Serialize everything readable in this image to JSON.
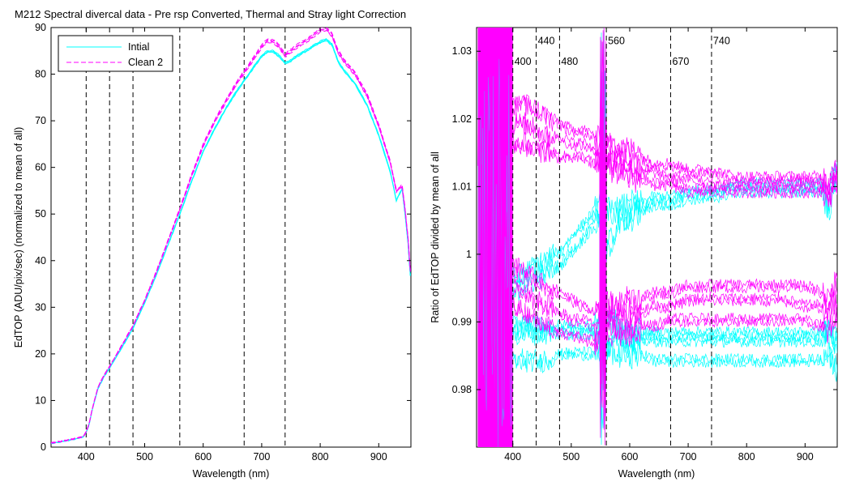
{
  "figure_title": "M212  Spectral divercal data - Pre rsp Converted, Thermal and Stray light Correction",
  "colors": {
    "initial": "#00FFFF",
    "clean": "#FF00FF",
    "reference_line": "#000000",
    "axes": "#000000"
  },
  "chart_data": [
    {
      "type": "line",
      "title": "",
      "xlabel": "Wavelength (nm)",
      "ylabel": "EdTOP (ADU/pix/sec) (normalized to mean of all)",
      "xlim": [
        340,
        955
      ],
      "ylim": [
        0,
        90
      ],
      "xticks": [
        400,
        500,
        600,
        700,
        800,
        900
      ],
      "yticks": [
        0,
        10,
        20,
        30,
        40,
        50,
        60,
        70,
        80,
        90
      ],
      "grid": false,
      "legend_position": "top-left",
      "legend": [
        {
          "label": "Intial",
          "color": "#00FFFF",
          "style": "solid"
        },
        {
          "label": "Clean 2",
          "color": "#FF00FF",
          "style": "dashed"
        }
      ],
      "reference_lines_x": [
        400,
        440,
        480,
        560,
        670,
        740
      ],
      "series": [
        {
          "name": "Intial",
          "color": "#00FFFF",
          "x": [
            340,
            360,
            380,
            395,
            400,
            405,
            410,
            420,
            430,
            440,
            460,
            480,
            500,
            520,
            540,
            560,
            580,
            600,
            620,
            640,
            660,
            680,
            700,
            710,
            720,
            730,
            740,
            750,
            760,
            780,
            800,
            810,
            820,
            830,
            840,
            860,
            880,
            900,
            920,
            930,
            940,
            945,
            950,
            955
          ],
          "values": [
            0.8,
            1.2,
            1.7,
            2.2,
            3.2,
            4.8,
            7.8,
            12.5,
            15.0,
            17.0,
            21.2,
            25.5,
            31.0,
            37.0,
            43.5,
            50.0,
            57.0,
            63.5,
            68.5,
            73.0,
            77.0,
            80.5,
            84.0,
            85.0,
            85.0,
            84.0,
            82.5,
            83.0,
            84.0,
            85.5,
            87.0,
            87.5,
            86.5,
            83.0,
            81.0,
            78.0,
            73.5,
            67.0,
            59.0,
            53.0,
            55.5,
            50.0,
            44.0,
            35.0
          ]
        },
        {
          "name": "Clean 2",
          "color": "#FF00FF",
          "x": [
            340,
            360,
            380,
            395,
            400,
            405,
            410,
            420,
            430,
            440,
            460,
            480,
            500,
            520,
            540,
            560,
            580,
            600,
            620,
            640,
            660,
            680,
            700,
            710,
            720,
            730,
            740,
            750,
            760,
            780,
            800,
            810,
            820,
            830,
            840,
            860,
            880,
            900,
            920,
            930,
            940,
            945,
            950,
            955
          ],
          "values": [
            0.9,
            1.3,
            1.8,
            2.3,
            3.3,
            5.0,
            8.0,
            12.8,
            15.3,
            17.3,
            21.6,
            26.0,
            31.5,
            37.6,
            44.3,
            51.0,
            58.2,
            64.8,
            70.0,
            74.5,
            78.7,
            82.2,
            86.0,
            87.2,
            87.0,
            86.0,
            84.0,
            85.0,
            86.0,
            87.5,
            89.5,
            89.8,
            88.5,
            85.0,
            83.0,
            80.0,
            75.5,
            69.0,
            61.0,
            55.0,
            56.0,
            51.0,
            45.0,
            36.0
          ]
        }
      ]
    },
    {
      "type": "line",
      "title": "",
      "xlabel": "Wavelength (nm)",
      "ylabel": "Ratio of EdTOP divided by mean of all",
      "xlim": [
        338,
        955
      ],
      "ylim": [
        0.9715,
        1.0335
      ],
      "xticks": [
        400,
        500,
        600,
        700,
        800,
        900
      ],
      "yticks": [
        0.98,
        0.99,
        1,
        1.01,
        1.02,
        1.03
      ],
      "ytick_labels": [
        "0.98",
        "0.99",
        "1",
        "1.01",
        "1.02",
        "1.03"
      ],
      "grid": false,
      "reference_lines_x": [
        400,
        440,
        480,
        560,
        670,
        740
      ],
      "annotations": [
        {
          "text": "400",
          "x": 400,
          "y": 1.0285
        },
        {
          "text": "440",
          "x": 440,
          "y": 1.0315
        },
        {
          "text": "480",
          "x": 480,
          "y": 1.0285
        },
        {
          "text": "560",
          "x": 560,
          "y": 1.0315
        },
        {
          "text": "670",
          "x": 670,
          "y": 1.0285
        },
        {
          "text": "740",
          "x": 740,
          "y": 1.0315
        }
      ],
      "noisy_region_x": [
        340,
        400
      ],
      "spike_x": [
        550,
        560
      ],
      "series": [
        {
          "name": "Intial",
          "color": "#00FFFF",
          "x": [
            400,
            420,
            440,
            460,
            480,
            500,
            520,
            540,
            550,
            560,
            580,
            600,
            620,
            640,
            670,
            700,
            740,
            780,
            820,
            860,
            900,
            930,
            940,
            950
          ],
          "curves": [
            [
              0.996,
              0.997,
              0.998,
              0.999,
              1.0,
              1.002,
              1.004,
              1.006,
              1.007,
              1.006,
              1.006,
              1.007,
              1.007,
              1.008,
              1.008,
              1.009,
              1.009,
              1.01,
              1.01,
              1.01,
              1.01,
              1.01,
              1.008,
              1.012
            ],
            [
              0.994,
              0.995,
              0.996,
              0.997,
              0.998,
              1.0,
              1.002,
              1.004,
              1.005,
              1.0,
              1.004,
              1.005,
              1.006,
              1.007,
              1.007,
              1.008,
              1.008,
              1.009,
              1.009,
              1.009,
              1.009,
              1.009,
              1.006,
              1.01
            ],
            [
              0.988,
              0.988,
              0.988,
              0.988,
              0.988,
              0.988,
              0.988,
              0.988,
              0.988,
              0.99,
              0.988,
              0.987,
              0.987,
              0.987,
              0.987,
              0.987,
              0.987,
              0.987,
              0.987,
              0.987,
              0.987,
              0.987,
              0.988,
              0.986
            ],
            [
              0.989,
              0.989,
              0.989,
              0.989,
              0.989,
              0.989,
              0.989,
              0.989,
              0.989,
              0.991,
              0.989,
              0.988,
              0.988,
              0.988,
              0.988,
              0.988,
              0.988,
              0.988,
              0.988,
              0.988,
              0.988,
              0.988,
              0.989,
              0.987
            ],
            [
              0.984,
              0.984,
              0.984,
              0.984,
              0.985,
              0.985,
              0.985,
              0.985,
              0.985,
              0.986,
              0.985,
              0.985,
              0.985,
              0.984,
              0.984,
              0.984,
              0.984,
              0.984,
              0.984,
              0.984,
              0.984,
              0.984,
              0.985,
              0.983
            ]
          ]
        },
        {
          "name": "Clean 2",
          "color": "#FF00FF",
          "x": [
            400,
            420,
            440,
            460,
            480,
            500,
            520,
            540,
            550,
            560,
            580,
            600,
            620,
            640,
            670,
            700,
            740,
            780,
            820,
            860,
            900,
            930,
            940,
            950
          ],
          "curves": [
            [
              1.022,
              1.022,
              1.021,
              1.02,
              1.019,
              1.018,
              1.018,
              1.017,
              1.016,
              1.016,
              1.015,
              1.015,
              1.014,
              1.013,
              1.013,
              1.012,
              1.012,
              1.011,
              1.011,
              1.011,
              1.011,
              1.011,
              1.01,
              1.012
            ],
            [
              1.019,
              1.019,
              1.018,
              1.017,
              1.017,
              1.016,
              1.016,
              1.015,
              1.015,
              1.014,
              1.014,
              1.013,
              1.012,
              1.012,
              1.011,
              1.011,
              1.01,
              1.01,
              1.01,
              1.01,
              1.01,
              1.01,
              1.009,
              1.011
            ],
            [
              1.016,
              1.016,
              1.015,
              1.015,
              1.014,
              1.014,
              1.014,
              1.013,
              1.013,
              1.013,
              1.012,
              1.011,
              1.011,
              1.01,
              1.01,
              1.009,
              1.009,
              1.009,
              1.009,
              1.009,
              1.009,
              1.009,
              1.008,
              1.01
            ],
            [
              0.998,
              0.997,
              0.996,
              0.995,
              0.994,
              0.993,
              0.992,
              0.991,
              0.991,
              0.992,
              0.992,
              0.993,
              0.993,
              0.994,
              0.994,
              0.995,
              0.995,
              0.995,
              0.995,
              0.995,
              0.995,
              0.994,
              0.993,
              0.995
            ],
            [
              0.995,
              0.994,
              0.993,
              0.992,
              0.991,
              0.99,
              0.99,
              0.989,
              0.989,
              0.99,
              0.99,
              0.991,
              0.991,
              0.992,
              0.992,
              0.993,
              0.993,
              0.993,
              0.993,
              0.993,
              0.992,
              0.992,
              0.991,
              0.993
            ],
            [
              0.992,
              0.991,
              0.99,
              0.989,
              0.988,
              0.988,
              0.987,
              0.987,
              0.987,
              0.988,
              0.988,
              0.988,
              0.989,
              0.989,
              0.99,
              0.99,
              0.99,
              0.99,
              0.99,
              0.99,
              0.99,
              0.989,
              0.988,
              0.99
            ]
          ]
        }
      ]
    }
  ]
}
